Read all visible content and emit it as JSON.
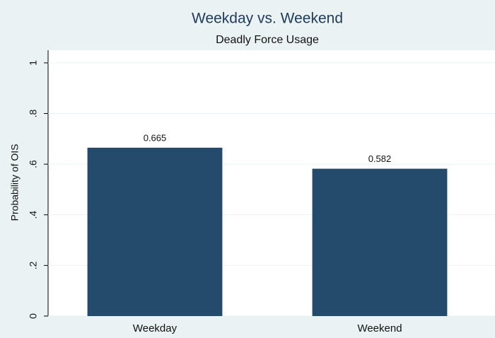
{
  "chart_data": {
    "type": "bar",
    "title": "Weekday vs. Weekend",
    "subtitle": "Deadly Force Usage",
    "y_label": "Probability of OIS",
    "categories": [
      "Weekday",
      "Weekend"
    ],
    "values": [
      0.665,
      0.582
    ],
    "color": "#244a6c",
    "ylim": [
      0,
      1.05
    ],
    "yticks": [
      0,
      {
        "value": 0.2,
        "label": ".2"
      },
      {
        "value": 0.4,
        "label": ".4"
      },
      {
        "value": 0.6,
        "label": ".6"
      },
      {
        "value": 0.8,
        "label": ".8"
      },
      1
    ],
    "grid": true
  }
}
